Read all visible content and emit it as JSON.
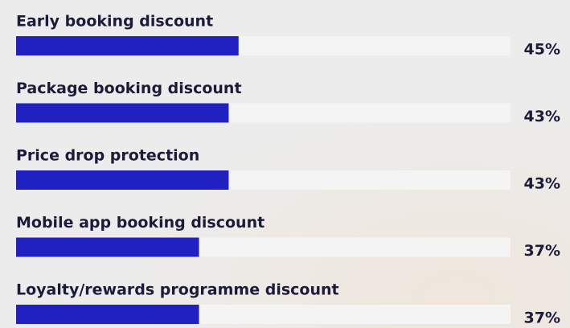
{
  "chart_data": {
    "type": "bar",
    "orientation": "horizontal",
    "categories": [
      "Early booking discount",
      "Package booking discount",
      "Price drop protection",
      "Mobile app booking discount",
      "Loyalty/rewards programme discount"
    ],
    "values": [
      45,
      43,
      43,
      37,
      37
    ],
    "value_labels": [
      "45%",
      "43%",
      "43%",
      "37%",
      "37%"
    ],
    "color": "#2121c2",
    "xlim": [
      0,
      100
    ]
  }
}
